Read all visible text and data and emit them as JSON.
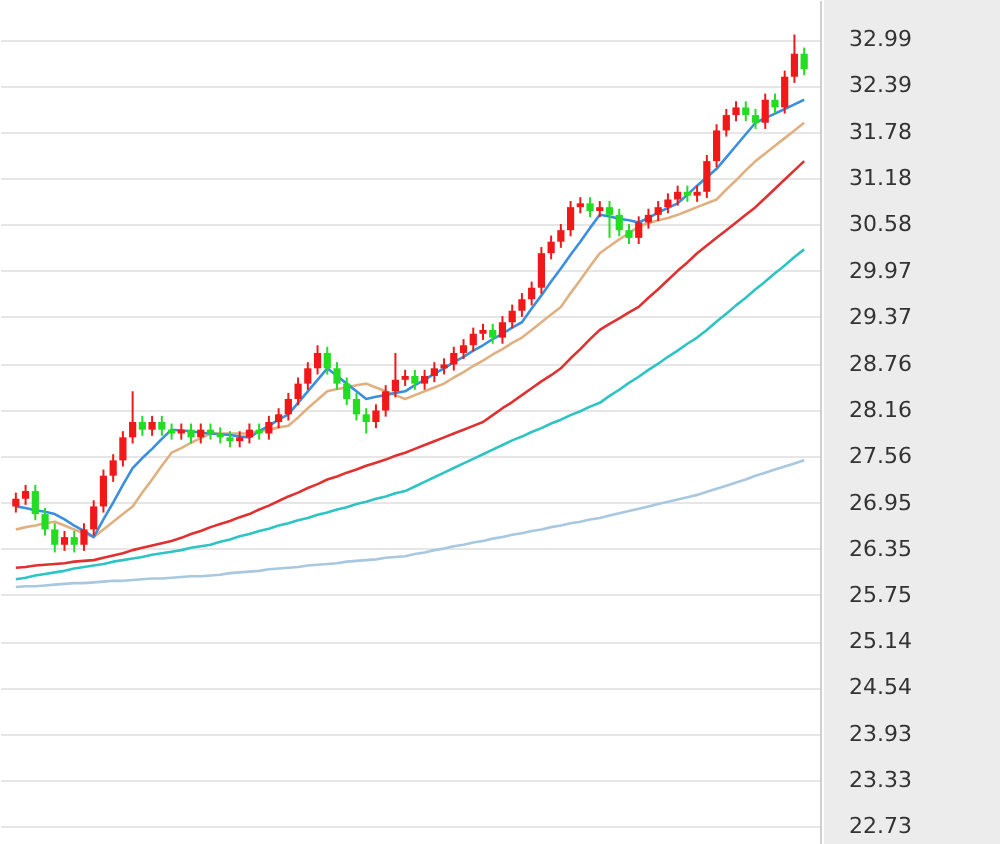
{
  "chart_data": {
    "type": "candlestick",
    "categories": [
      null,
      null,
      null,
      null,
      null,
      null,
      null,
      null,
      null,
      null,
      null,
      null,
      null,
      null,
      null,
      null,
      null,
      null,
      null,
      null,
      null,
      null,
      null,
      null,
      null,
      null,
      null,
      null,
      null,
      null,
      null,
      null,
      null,
      null,
      null,
      null,
      null,
      null,
      null,
      null,
      null,
      null,
      null,
      null,
      null,
      null,
      null,
      null,
      null,
      null,
      null,
      null,
      null,
      null,
      null,
      null,
      null,
      null,
      null,
      null,
      null,
      null,
      null,
      null,
      null,
      null,
      null,
      null,
      null,
      null,
      null,
      null,
      null,
      null,
      null,
      null,
      null,
      null,
      null,
      null,
      null,
      null
    ],
    "ohlc": [
      [
        26.9,
        27.08,
        26.82,
        27.0
      ],
      [
        27.0,
        27.18,
        26.92,
        27.1
      ],
      [
        27.1,
        27.18,
        26.72,
        26.8
      ],
      [
        26.8,
        26.88,
        26.52,
        26.6
      ],
      [
        26.6,
        26.68,
        26.3,
        26.4
      ],
      [
        26.4,
        26.58,
        26.32,
        26.5
      ],
      [
        26.5,
        26.58,
        26.3,
        26.4
      ],
      [
        26.4,
        26.68,
        26.32,
        26.6
      ],
      [
        26.6,
        26.98,
        26.52,
        26.9
      ],
      [
        26.9,
        27.38,
        26.82,
        27.3
      ],
      [
        27.3,
        27.58,
        27.22,
        27.5
      ],
      [
        27.5,
        27.88,
        27.42,
        27.8
      ],
      [
        27.8,
        28.4,
        27.72,
        28.0
      ],
      [
        28.0,
        28.08,
        27.82,
        27.9
      ],
      [
        27.9,
        28.08,
        27.82,
        28.0
      ],
      [
        28.0,
        28.08,
        27.82,
        27.9
      ],
      [
        27.9,
        27.98,
        27.77,
        27.85
      ],
      [
        27.85,
        27.98,
        27.77,
        27.9
      ],
      [
        27.9,
        27.98,
        27.72,
        27.8
      ],
      [
        27.8,
        27.98,
        27.72,
        27.9
      ],
      [
        27.9,
        27.98,
        27.77,
        27.85
      ],
      [
        27.85,
        27.93,
        27.72,
        27.8
      ],
      [
        27.8,
        27.88,
        27.67,
        27.75
      ],
      [
        27.75,
        27.88,
        27.67,
        27.8
      ],
      [
        27.8,
        27.98,
        27.72,
        27.9
      ],
      [
        27.9,
        27.98,
        27.77,
        27.85
      ],
      [
        27.85,
        28.08,
        27.77,
        28.0
      ],
      [
        28.0,
        28.18,
        27.92,
        28.1
      ],
      [
        28.1,
        28.38,
        28.02,
        28.3
      ],
      [
        28.3,
        28.58,
        28.22,
        28.5
      ],
      [
        28.5,
        28.78,
        28.42,
        28.7
      ],
      [
        28.7,
        29.0,
        28.62,
        28.9
      ],
      [
        28.9,
        28.98,
        28.62,
        28.7
      ],
      [
        28.7,
        28.78,
        28.42,
        28.5
      ],
      [
        28.5,
        28.58,
        28.22,
        28.3
      ],
      [
        28.3,
        28.38,
        28.02,
        28.1
      ],
      [
        28.1,
        28.18,
        27.85,
        28.0
      ],
      [
        28.0,
        28.23,
        27.92,
        28.15
      ],
      [
        28.15,
        28.48,
        28.07,
        28.4
      ],
      [
        28.4,
        28.9,
        28.32,
        28.55
      ],
      [
        28.55,
        28.68,
        28.47,
        28.6
      ],
      [
        28.6,
        28.68,
        28.42,
        28.5
      ],
      [
        28.5,
        28.68,
        28.42,
        28.6
      ],
      [
        28.6,
        28.78,
        28.52,
        28.7
      ],
      [
        28.7,
        28.83,
        28.62,
        28.75
      ],
      [
        28.75,
        28.98,
        28.67,
        28.9
      ],
      [
        28.9,
        29.08,
        28.82,
        29.0
      ],
      [
        29.0,
        29.23,
        28.92,
        29.15
      ],
      [
        29.15,
        29.28,
        29.07,
        29.2
      ],
      [
        29.2,
        29.28,
        29.02,
        29.1
      ],
      [
        29.1,
        29.38,
        29.02,
        29.3
      ],
      [
        29.3,
        29.53,
        29.22,
        29.45
      ],
      [
        29.45,
        29.68,
        29.37,
        29.6
      ],
      [
        29.6,
        29.83,
        29.52,
        29.75
      ],
      [
        29.75,
        30.28,
        29.67,
        30.2
      ],
      [
        30.2,
        30.43,
        30.12,
        30.35
      ],
      [
        30.35,
        30.58,
        30.27,
        30.5
      ],
      [
        30.5,
        30.88,
        30.42,
        30.8
      ],
      [
        30.8,
        30.93,
        30.72,
        30.85
      ],
      [
        30.85,
        30.93,
        30.67,
        30.75
      ],
      [
        30.75,
        30.88,
        30.67,
        30.8
      ],
      [
        30.8,
        30.88,
        30.4,
        30.7
      ],
      [
        30.7,
        30.78,
        30.42,
        30.5
      ],
      [
        30.5,
        30.58,
        30.32,
        30.4
      ],
      [
        30.4,
        30.68,
        30.32,
        30.6
      ],
      [
        30.6,
        30.78,
        30.52,
        30.7
      ],
      [
        30.7,
        30.88,
        30.62,
        30.8
      ],
      [
        30.8,
        30.98,
        30.72,
        30.9
      ],
      [
        30.9,
        31.08,
        30.82,
        31.0
      ],
      [
        31.0,
        31.08,
        30.87,
        30.95
      ],
      [
        30.95,
        31.08,
        30.87,
        31.0
      ],
      [
        31.0,
        31.48,
        30.92,
        31.4
      ],
      [
        31.4,
        31.88,
        31.32,
        31.8
      ],
      [
        31.8,
        32.08,
        31.72,
        32.0
      ],
      [
        32.0,
        32.18,
        31.92,
        32.1
      ],
      [
        32.1,
        32.18,
        31.92,
        32.0
      ],
      [
        32.0,
        32.08,
        31.82,
        31.9
      ],
      [
        31.9,
        32.28,
        31.82,
        32.2
      ],
      [
        32.2,
        32.28,
        32.02,
        32.1
      ],
      [
        32.1,
        32.58,
        32.02,
        32.5
      ],
      [
        32.5,
        33.05,
        32.42,
        32.8
      ],
      [
        32.8,
        32.88,
        32.52,
        32.6
      ]
    ],
    "colors": [
      "#f01818",
      "#f01818",
      "#22dd22",
      "#22dd22",
      "#22dd22",
      "#f01818",
      "#22dd22",
      "#f01818",
      "#f01818",
      "#f01818",
      "#f01818",
      "#f01818",
      "#f01818",
      "#22dd22",
      "#f01818",
      "#22dd22",
      "#22dd22",
      "#f01818",
      "#22dd22",
      "#f01818",
      "#22dd22",
      "#22dd22",
      "#22dd22",
      "#f01818",
      "#f01818",
      "#22dd22",
      "#f01818",
      "#f01818",
      "#f01818",
      "#f01818",
      "#f01818",
      "#f01818",
      "#22dd22",
      "#22dd22",
      "#22dd22",
      "#22dd22",
      "#22dd22",
      "#f01818",
      "#f01818",
      "#f01818",
      "#f01818",
      "#22dd22",
      "#f01818",
      "#f01818",
      "#f01818",
      "#f01818",
      "#f01818",
      "#f01818",
      "#f01818",
      "#22dd22",
      "#f01818",
      "#f01818",
      "#f01818",
      "#f01818",
      "#f01818",
      "#f01818",
      "#f01818",
      "#f01818",
      "#f01818",
      "#22dd22",
      "#f01818",
      "#22dd22",
      "#22dd22",
      "#22dd22",
      "#f01818",
      "#f01818",
      "#f01818",
      "#f01818",
      "#f01818",
      "#22dd22",
      "#f01818",
      "#f01818",
      "#f01818",
      "#f01818",
      "#f01818",
      "#22dd22",
      "#22dd22",
      "#f01818",
      "#22dd22",
      "#f01818",
      "#f01818",
      "#22dd22"
    ],
    "series": [
      {
        "type": "line",
        "color": "#a8c8e0",
        "values": [
          25.85,
          25.86,
          25.86,
          25.87,
          25.88,
          25.89,
          25.9,
          25.9,
          25.91,
          25.92,
          25.93,
          25.93,
          25.94,
          25.95,
          25.96,
          25.96,
          25.97,
          25.98,
          25.99,
          25.99,
          26.0,
          26.01,
          26.03,
          26.04,
          26.05,
          26.06,
          26.08,
          26.09,
          26.1,
          26.11,
          26.13,
          26.14,
          26.15,
          26.16,
          26.18,
          26.19,
          26.2,
          26.21,
          26.23,
          26.24,
          26.25,
          26.28,
          26.3,
          26.33,
          26.35,
          26.38,
          26.4,
          26.43,
          26.45,
          26.48,
          26.5,
          26.53,
          26.55,
          26.58,
          26.6,
          26.63,
          26.65,
          26.68,
          26.7,
          26.73,
          26.75,
          26.78,
          26.81,
          26.84,
          26.87,
          26.9,
          26.93,
          26.96,
          26.99,
          27.02,
          27.05,
          27.09,
          27.13,
          27.17,
          27.21,
          27.25,
          27.3,
          27.34,
          27.38,
          27.42,
          27.46,
          27.5
        ]
      },
      {
        "type": "line",
        "color": "#2ec4c4",
        "values": [
          25.95,
          25.97,
          26.0,
          26.02,
          26.04,
          26.06,
          26.09,
          26.11,
          26.13,
          26.15,
          26.18,
          26.2,
          26.22,
          26.24,
          26.27,
          26.29,
          26.31,
          26.33,
          26.36,
          26.38,
          26.4,
          26.44,
          26.47,
          26.51,
          26.54,
          26.58,
          26.61,
          26.65,
          26.68,
          26.72,
          26.75,
          26.79,
          26.82,
          26.86,
          26.89,
          26.93,
          26.96,
          27.0,
          27.03,
          27.07,
          27.1,
          27.16,
          27.22,
          27.28,
          27.34,
          27.4,
          27.46,
          27.52,
          27.58,
          27.64,
          27.7,
          27.76,
          27.81,
          27.87,
          27.92,
          27.98,
          28.03,
          28.09,
          28.14,
          28.2,
          28.25,
          28.34,
          28.42,
          28.51,
          28.59,
          28.68,
          28.76,
          28.85,
          28.93,
          29.02,
          29.1,
          29.2,
          29.31,
          29.41,
          29.52,
          29.62,
          29.73,
          29.83,
          29.94,
          30.04,
          30.15,
          30.25
        ]
      },
      {
        "type": "line",
        "color": "#e03030",
        "values": [
          26.1,
          26.11,
          26.13,
          26.14,
          26.15,
          26.16,
          26.18,
          26.19,
          26.2,
          26.23,
          26.26,
          26.29,
          26.33,
          26.36,
          26.39,
          26.42,
          26.45,
          26.49,
          26.54,
          26.58,
          26.63,
          26.67,
          26.71,
          26.76,
          26.8,
          26.86,
          26.91,
          26.97,
          27.03,
          27.08,
          27.14,
          27.19,
          27.25,
          27.29,
          27.34,
          27.38,
          27.43,
          27.47,
          27.51,
          27.56,
          27.6,
          27.65,
          27.7,
          27.75,
          27.8,
          27.85,
          27.9,
          27.95,
          28.0,
          28.09,
          28.18,
          28.26,
          28.35,
          28.44,
          28.53,
          28.61,
          28.7,
          28.83,
          28.95,
          29.08,
          29.2,
          29.28,
          29.35,
          29.43,
          29.5,
          29.62,
          29.73,
          29.85,
          29.97,
          30.08,
          30.2,
          30.3,
          30.4,
          30.5,
          30.6,
          30.7,
          30.8,
          30.92,
          31.04,
          31.16,
          31.28,
          31.4
        ]
      },
      {
        "type": "line",
        "color": "#e0b080",
        "values": [
          26.6,
          26.63,
          26.65,
          26.68,
          26.7,
          26.65,
          26.6,
          26.55,
          26.5,
          26.6,
          26.7,
          26.8,
          26.9,
          27.08,
          27.25,
          27.43,
          27.6,
          27.66,
          27.73,
          27.79,
          27.85,
          27.85,
          27.85,
          27.85,
          27.85,
          27.88,
          27.9,
          27.93,
          27.95,
          28.06,
          28.18,
          28.29,
          28.4,
          28.43,
          28.45,
          28.48,
          28.5,
          28.45,
          28.4,
          28.35,
          28.3,
          28.35,
          28.4,
          28.45,
          28.5,
          28.58,
          28.65,
          28.73,
          28.8,
          28.88,
          28.95,
          29.03,
          29.1,
          29.2,
          29.3,
          29.4,
          29.5,
          29.68,
          29.85,
          30.03,
          30.2,
          30.29,
          30.38,
          30.46,
          30.55,
          30.59,
          30.63,
          30.66,
          30.7,
          30.75,
          30.8,
          30.85,
          30.9,
          31.03,
          31.15,
          31.28,
          31.4,
          31.5,
          31.6,
          31.7,
          31.8,
          31.9
        ]
      },
      {
        "type": "line",
        "color": "#3a8fe0",
        "values": [
          26.9,
          26.88,
          26.85,
          26.83,
          26.8,
          26.73,
          26.65,
          26.58,
          26.5,
          26.73,
          26.95,
          27.18,
          27.4,
          27.53,
          27.65,
          27.78,
          27.9,
          27.89,
          27.88,
          27.86,
          27.85,
          27.84,
          27.83,
          27.81,
          27.8,
          27.88,
          27.95,
          28.03,
          28.1,
          28.25,
          28.4,
          28.55,
          28.7,
          28.6,
          28.5,
          28.4,
          28.3,
          28.33,
          28.35,
          28.38,
          28.4,
          28.48,
          28.55,
          28.63,
          28.7,
          28.78,
          28.85,
          28.93,
          29.0,
          29.08,
          29.15,
          29.23,
          29.3,
          29.48,
          29.65,
          29.83,
          30.0,
          30.18,
          30.35,
          30.53,
          30.7,
          30.68,
          30.65,
          30.63,
          30.6,
          30.66,
          30.73,
          30.79,
          30.85,
          30.96,
          31.08,
          31.19,
          31.3,
          31.45,
          31.6,
          31.75,
          31.9,
          31.96,
          32.02,
          32.08,
          32.14,
          32.2
        ]
      }
    ],
    "ylim": [
      22.5,
      33.5
    ],
    "yticks": [
      32.99,
      32.39,
      31.78,
      31.18,
      30.58,
      29.97,
      29.37,
      28.76,
      28.16,
      27.56,
      26.95,
      26.35,
      25.75,
      25.14,
      24.54,
      23.93,
      23.33,
      22.73
    ],
    "grid": "y",
    "tick_labels": "y"
  }
}
